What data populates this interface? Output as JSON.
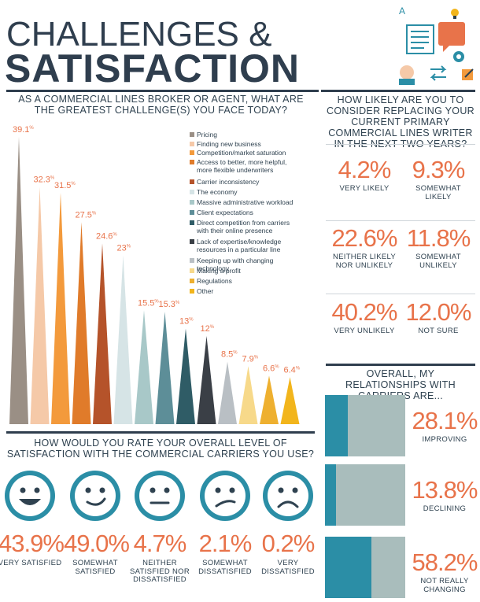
{
  "header": {
    "title_line1": "CHALLENGES &",
    "title_line2": "SATISFACTION"
  },
  "challenges": {
    "question": "AS A COMMERCIAL LINES BROKER OR AGENT, WHAT ARE THE GREATEST CHALLENGE(S) YOU FACE TODAY?"
  },
  "likely": {
    "question": "HOW LIKELY ARE YOU TO CONSIDER REPLACING YOUR CURRENT PRIMARY COMMERCIAL LINES WRITER IN THE NEXT TWO YEARS?",
    "items": [
      {
        "pct": "4.2",
        "label": "VERY LIKELY"
      },
      {
        "pct": "9.3",
        "label": "SOMEWHAT LIKELY"
      },
      {
        "pct": "22.6",
        "label": "NEITHER LIKELY NOR UNLIKELY"
      },
      {
        "pct": "11.8",
        "label": "SOMEWHAT UNLIKELY"
      },
      {
        "pct": "40.2",
        "label": "VERY UNLIKELY"
      },
      {
        "pct": "12.0",
        "label": "NOT SURE"
      }
    ]
  },
  "satisfaction": {
    "question": "HOW WOULD YOU RATE YOUR OVERALL LEVEL OF SATISFACTION WITH THE COMMERCIAL CARRIERS YOU USE?",
    "items": [
      {
        "pct": "43.9",
        "label": "VERY SATISFIED"
      },
      {
        "pct": "49.0",
        "label": "SOMEWHAT SATISFIED"
      },
      {
        "pct": "4.7",
        "label": "NEITHER SATISFIED NOR DISSATISFIED"
      },
      {
        "pct": "2.1",
        "label": "SOMEWHAT DISSATISFIED"
      },
      {
        "pct": "0.2",
        "label": "VERY DISSATISFIED"
      }
    ]
  },
  "relationships": {
    "question": "OVERALL, MY RELATIONSHIPS WITH CARRIERS ARE...",
    "items": [
      {
        "pct": "28.1",
        "label": "IMPROVING",
        "value": 28.1
      },
      {
        "pct": "13.8",
        "label": "DECLINING",
        "value": 13.8
      },
      {
        "pct": "58.2",
        "label": "NOT REALLY CHANGING",
        "value": 58.2
      }
    ],
    "colors": {
      "fill": "#2b8ea6",
      "track": "#a9bdbc"
    }
  },
  "chart_data": {
    "type": "bar",
    "title": "AS A COMMERCIAL LINES BROKER OR AGENT, WHAT ARE THE GREATEST CHALLENGE(S) YOU FACE TODAY?",
    "categories": [
      "Pricing",
      "Finding new business",
      "Competition/market saturation",
      "Access to better, more helpful, more flexible underwriters",
      "Carrier inconsistency",
      "The economy",
      "Massive administrative workload",
      "Client expectations",
      "Direct competition from carriers with their online presence",
      "Lack of expertise/knowledge resources in a particular line",
      "Keeping up with changing technology",
      "Making a profit",
      "Regulations",
      "Other"
    ],
    "values": [
      39.1,
      32.3,
      31.5,
      27.5,
      24.6,
      23,
      15.5,
      15.3,
      13,
      12,
      8.5,
      7.9,
      6.6,
      6.4
    ],
    "value_labels": [
      "39.1",
      "32.3",
      "31.5",
      "27.5",
      "24.6",
      "23",
      "15.5",
      "15.3",
      "13",
      "12",
      "8.5",
      "7.9",
      "6.6",
      "6.4"
    ],
    "colors": [
      "#9a8f85",
      "#f5c9a8",
      "#f39a3c",
      "#e07b2a",
      "#b5532a",
      "#d6e4e6",
      "#a8c8c8",
      "#5d8e98",
      "#2f5c66",
      "#3a3f46",
      "#b9bfc4",
      "#f7d98a",
      "#eeb030",
      "#f2b51c"
    ],
    "ylim": [
      0,
      40
    ],
    "legend": "right"
  }
}
